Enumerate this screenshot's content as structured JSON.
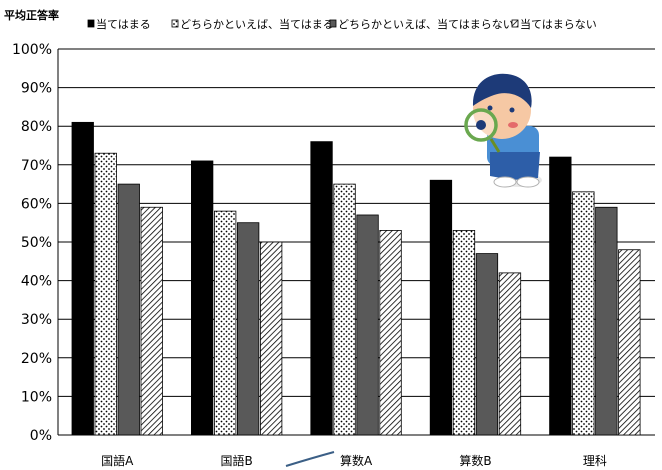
{
  "chart_data": {
    "type": "bar",
    "ylabel": "平均正答率",
    "categories": [
      "国語A",
      "国語B",
      "算数A",
      "算数B",
      "理科"
    ],
    "series": [
      {
        "name": "当てはまる",
        "values": [
          81,
          71,
          76,
          66,
          72
        ],
        "fill": "solid",
        "color": "#000000"
      },
      {
        "name": "どちらかといえば、当てはまる",
        "values": [
          73,
          58,
          65,
          53,
          63
        ],
        "fill": "dots",
        "color": "#ffffff"
      },
      {
        "name": "どちらかといえば、当てはまらない",
        "values": [
          65,
          55,
          57,
          47,
          59
        ],
        "fill": "solid",
        "color": "#595959"
      },
      {
        "name": "当てはまらない",
        "values": [
          59,
          50,
          53,
          42,
          48
        ],
        "fill": "diagonal",
        "color": "#ffffff"
      }
    ],
    "ylim": [
      0,
      100
    ],
    "yticks": [
      0,
      10,
      20,
      30,
      40,
      50,
      60,
      70,
      80,
      90,
      100
    ],
    "tick_suffix": "%",
    "grid": true,
    "legend_position": "top"
  }
}
